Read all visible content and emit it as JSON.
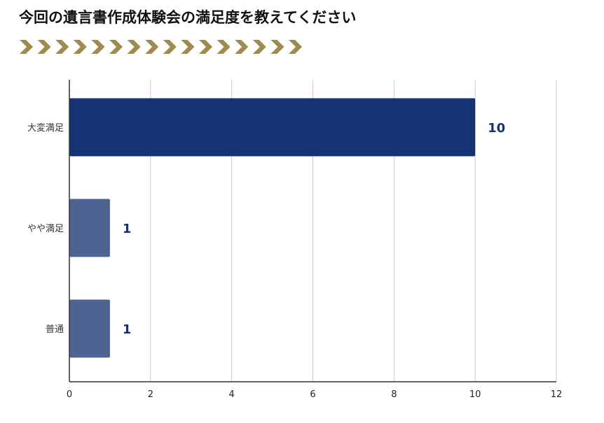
{
  "title": "今回の遺言書作成体験会の満足度を教えてください",
  "decoration": {
    "chevron_count": 16,
    "chevron_color": "#a08a50"
  },
  "chart_data": {
    "type": "bar",
    "orientation": "horizontal",
    "categories": [
      "大変満足",
      "やや満足",
      "普通"
    ],
    "values": [
      10,
      1,
      1
    ],
    "data_labels": [
      "10",
      "1",
      "1"
    ],
    "bar_colors": [
      "#163272",
      "#4f6393",
      "#4f6393"
    ],
    "xlim": [
      0,
      12
    ],
    "x_ticks": [
      "0",
      "2",
      "4",
      "6",
      "8",
      "10",
      "12"
    ],
    "grid": true,
    "legend": "none",
    "label_color": "#163272"
  }
}
